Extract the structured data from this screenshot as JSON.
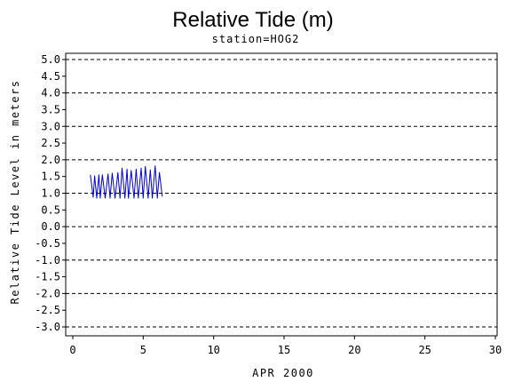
{
  "chart_data": {
    "type": "line",
    "title": "Relative Tide (m)",
    "subtitle": "station=HOG2",
    "xlabel": "APR 2000",
    "ylabel": "Relative Tide Level in meters",
    "xlim": [
      0,
      30
    ],
    "ylim": [
      -3.0,
      5.0
    ],
    "x_ticks": [
      0,
      5,
      10,
      15,
      20,
      25,
      30
    ],
    "y_ticks": [
      5.0,
      4.5,
      4.0,
      3.5,
      3.0,
      2.5,
      2.0,
      1.5,
      1.0,
      0.5,
      0.0,
      -0.5,
      -1.0,
      -1.5,
      -2.0,
      -2.5,
      -3.0
    ],
    "y_tick_labels": [
      "5.0",
      "4.5",
      "4.0",
      "3.5",
      "3.0",
      "2.5",
      "2.0",
      "1.5",
      "1.0",
      "0.5",
      "0.0",
      "-0.5",
      "-1.0",
      "-1.5",
      "-2.0",
      "-2.5",
      "-3.0"
    ],
    "grid": {
      "horizontal_dashed_at": [
        5.0,
        4.0,
        3.0,
        2.0,
        1.0,
        0.0,
        -1.0,
        -2.0,
        -3.0
      ]
    },
    "series": [
      {
        "color": "#0000cc",
        "x": [
          1.25,
          1.45,
          1.55,
          1.7,
          1.85,
          1.95,
          2.1,
          2.3,
          2.5,
          2.65,
          2.8,
          3.0,
          3.2,
          3.35,
          3.5,
          3.7,
          3.85,
          3.95,
          4.15,
          4.35,
          4.5,
          4.65,
          4.85,
          5.0,
          5.15,
          5.35,
          5.5,
          5.65,
          5.85,
          6.0,
          6.15,
          6.35
        ],
        "y": [
          1.55,
          0.88,
          1.52,
          0.85,
          1.55,
          0.85,
          1.55,
          0.85,
          1.58,
          0.85,
          1.6,
          0.85,
          1.62,
          0.85,
          1.75,
          0.85,
          1.72,
          0.85,
          1.68,
          0.85,
          1.72,
          0.85,
          1.75,
          0.85,
          1.8,
          0.85,
          1.7,
          0.85,
          1.82,
          0.85,
          1.62,
          0.9
        ]
      }
    ],
    "colors": {
      "series": "#0000cc",
      "axes": "#000000",
      "grid": "#000000"
    }
  }
}
